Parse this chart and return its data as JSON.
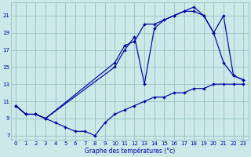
{
  "xlabel": "Graphe des températures (°c)",
  "bg_color": "#cce8e8",
  "grid_color": "#a0c8c8",
  "line_color": "#0000aa",
  "xlim": [
    -0.5,
    23.5
  ],
  "ylim": [
    6.5,
    22.5
  ],
  "yticks": [
    7,
    9,
    11,
    13,
    15,
    17,
    19,
    21
  ],
  "xticks": [
    0,
    1,
    2,
    3,
    4,
    5,
    6,
    7,
    8,
    9,
    10,
    11,
    12,
    13,
    14,
    15,
    16,
    17,
    18,
    19,
    20,
    21,
    22,
    23
  ],
  "line1_x": [
    0,
    1,
    2,
    3,
    4,
    5,
    6,
    7,
    8,
    9,
    10,
    11,
    12,
    13,
    14,
    15,
    16,
    17,
    18,
    19,
    20,
    21,
    22,
    23
  ],
  "line1_y": [
    10.5,
    9.5,
    9.5,
    9.0,
    8.5,
    8.0,
    7.5,
    7.5,
    7.0,
    8.5,
    9.5,
    10.0,
    10.5,
    11.0,
    11.5,
    11.5,
    12.0,
    12.0,
    12.5,
    12.5,
    13.0,
    13.0,
    13.0,
    13.0
  ],
  "line2_x": [
    0,
    1,
    2,
    3,
    10,
    11,
    12,
    13,
    14,
    15,
    16,
    17,
    18,
    19,
    20,
    21,
    22,
    23
  ],
  "line2_y": [
    10.5,
    9.5,
    9.5,
    9.0,
    15.5,
    17.5,
    18.0,
    20.0,
    20.0,
    20.5,
    21.0,
    21.5,
    22.0,
    21.0,
    19.0,
    15.5,
    14.0,
    13.5
  ],
  "line3_x": [
    0,
    1,
    2,
    3,
    10,
    11,
    12,
    13,
    14,
    15,
    16,
    17,
    18,
    19,
    20,
    21,
    22,
    23
  ],
  "line3_y": [
    10.5,
    9.5,
    9.5,
    9.0,
    15.0,
    17.0,
    18.5,
    13.0,
    19.5,
    20.5,
    21.0,
    21.5,
    21.5,
    21.0,
    19.0,
    21.0,
    14.0,
    13.5
  ]
}
